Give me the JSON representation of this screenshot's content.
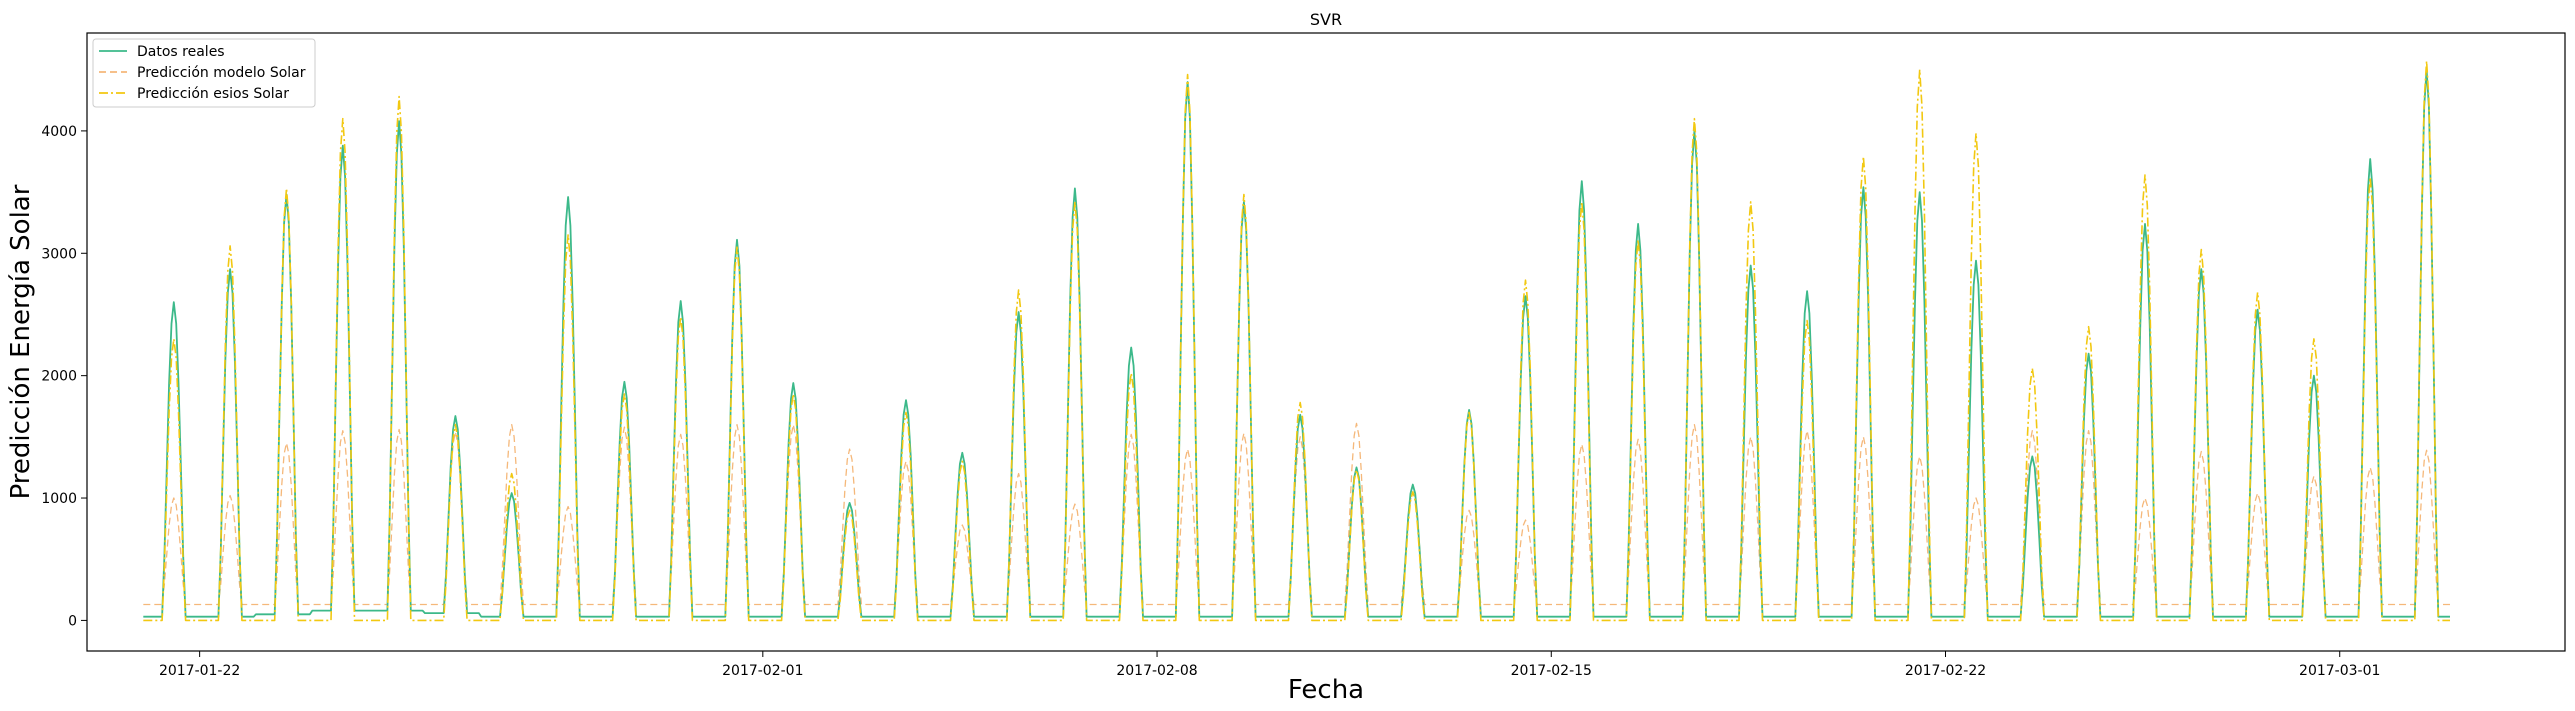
{
  "chart_data": {
    "type": "line",
    "title": "SVR",
    "xlabel": "Fecha",
    "ylabel": "Predicción Energía Solar",
    "x_ticks": [
      "2017-01-22",
      "2017-02-01",
      "2017-02-08",
      "2017-02-15",
      "2017-02-22",
      "2017-03-01"
    ],
    "y_ticks": [
      "0",
      "1000",
      "2000",
      "3000",
      "4000"
    ],
    "xlim": [
      "2017-01-20",
      "2017-03-05"
    ],
    "ylim": [
      -250,
      4800
    ],
    "grid": false,
    "legend_position": "top-left",
    "day_start": "2017-01-21",
    "colors": {
      "real": "#3cb98a",
      "modelo": "#f5b87a",
      "esios": "#f2c811"
    },
    "series": [
      {
        "name": "Datos reales",
        "style": "solid",
        "daily_peaks": [
          2600,
          2870,
          3480,
          3880,
          4080,
          1670,
          1040,
          3460,
          1950,
          2610,
          3110,
          1940,
          960,
          1800,
          1370,
          2520,
          3530,
          2230,
          4400,
          3420,
          1680,
          1250,
          1110,
          1720,
          2650,
          3590,
          3240,
          4000,
          2900,
          2690,
          3540,
          3500,
          2940,
          1340,
          2180,
          3240,
          2870,
          2540,
          2000,
          3770,
          4500
        ],
        "daily_base": [
          30,
          30,
          50,
          80,
          80,
          60,
          30,
          30,
          30,
          30,
          30,
          30,
          30,
          30,
          30,
          30,
          30,
          30,
          30,
          30,
          30,
          30,
          30,
          30,
          30,
          30,
          30,
          30,
          30,
          30,
          30,
          30,
          30,
          30,
          30,
          30,
          30,
          30,
          30,
          30,
          30
        ]
      },
      {
        "name": "Predicción modelo Solar",
        "style": "dashed",
        "daily_peaks": [
          1000,
          1020,
          1450,
          1550,
          1560,
          1540,
          1600,
          930,
          1580,
          1520,
          1600,
          1600,
          1400,
          1300,
          780,
          1200,
          950,
          1520,
          1400,
          1530,
          1500,
          1610,
          1050,
          900,
          820,
          1440,
          1480,
          1600,
          1500,
          1550,
          1500,
          1340,
          1000,
          1550,
          1550,
          1000,
          1380,
          1040,
          1180,
          1250,
          1390
        ],
        "daily_base": [
          130,
          130,
          130,
          130,
          130,
          130,
          130,
          130,
          130,
          130,
          130,
          130,
          130,
          130,
          130,
          130,
          130,
          130,
          130,
          130,
          130,
          130,
          130,
          130,
          130,
          130,
          130,
          130,
          130,
          130,
          130,
          130,
          130,
          130,
          130,
          130,
          130,
          130,
          130,
          130,
          130
        ]
      },
      {
        "name": "Predicción esios Solar",
        "style": "dashdot",
        "daily_peaks": [
          2300,
          3060,
          3530,
          4100,
          4280,
          1600,
          1200,
          3150,
          1850,
          2480,
          3050,
          1850,
          900,
          1700,
          1300,
          2700,
          3420,
          2020,
          4460,
          3480,
          1780,
          1230,
          1050,
          1700,
          2780,
          3420,
          3110,
          4100,
          3420,
          2450,
          3790,
          4500,
          3980,
          2060,
          2400,
          3640,
          3030,
          2680,
          2300,
          3620,
          4570
        ],
        "daily_base": [
          0,
          0,
          0,
          0,
          0,
          0,
          0,
          0,
          0,
          0,
          0,
          0,
          0,
          0,
          0,
          0,
          0,
          0,
          0,
          0,
          0,
          0,
          0,
          0,
          0,
          0,
          0,
          0,
          0,
          0,
          0,
          0,
          0,
          0,
          0,
          0,
          0,
          0,
          0,
          0,
          0
        ]
      }
    ]
  }
}
